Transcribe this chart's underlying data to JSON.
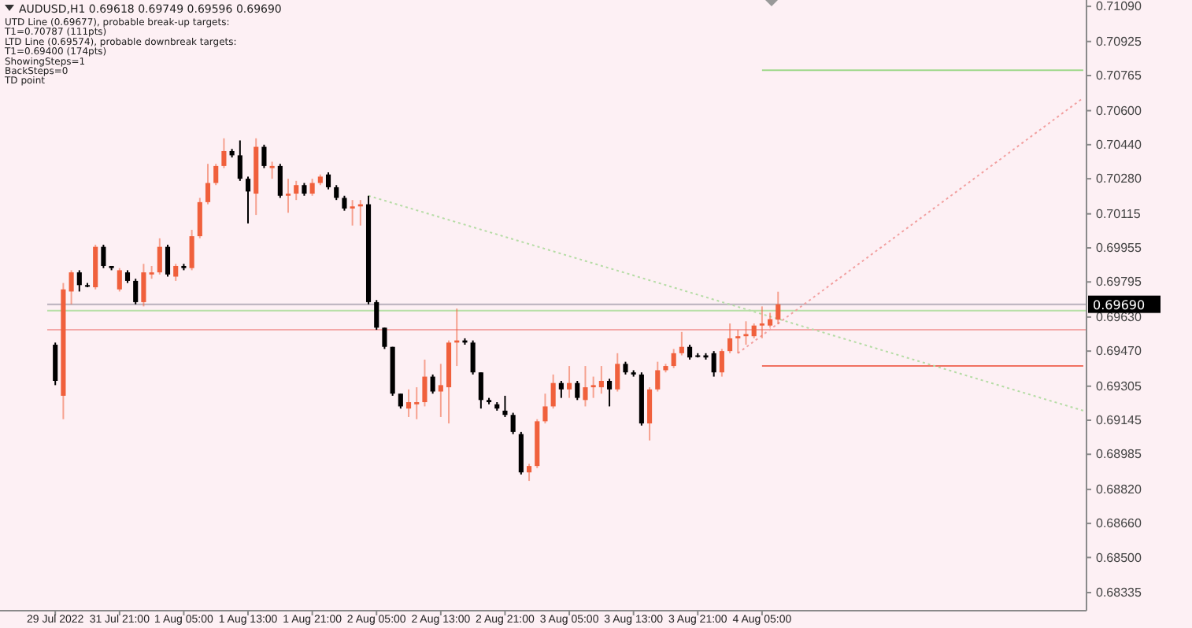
{
  "chart_data": {
    "type": "candlestick",
    "title": "AUDUSD,H1  0.69618 0.69749 0.69596 0.69690",
    "annotations": [
      "UTD Line (0.69677), probable break-up targets:",
      "T1=0.70787 (111pts)",
      "LTD Line (0.69574), probable downbreak targets:",
      "T1=0.69400 (174pts)",
      "ShowingSteps=1",
      "BackSteps=0",
      "TD point"
    ],
    "categories": [
      "29 Jul 2022",
      null,
      null,
      null,
      null,
      null,
      null,
      null,
      "31 Jul 21:00",
      null,
      null,
      null,
      null,
      null,
      null,
      null,
      "1 Aug 05:00",
      null,
      null,
      null,
      null,
      null,
      null,
      null,
      "1 Aug 13:00",
      null,
      null,
      null,
      null,
      null,
      null,
      null,
      "1 Aug 21:00",
      null,
      null,
      null,
      null,
      null,
      null,
      null,
      "2 Aug 05:00",
      null,
      null,
      null,
      null,
      null,
      null,
      null,
      "2 Aug 13:00",
      null,
      null,
      null,
      null,
      null,
      null,
      null,
      "2 Aug 21:00",
      null,
      null,
      null,
      null,
      null,
      null,
      null,
      "3 Aug 05:00",
      null,
      null,
      null,
      null,
      null,
      null,
      null,
      "3 Aug 13:00",
      null,
      null,
      null,
      null,
      null,
      null,
      null,
      "3 Aug 21:00",
      null,
      null,
      null,
      null,
      null,
      null,
      null,
      "4 Aug 05:00",
      null,
      null,
      null,
      null,
      null,
      null,
      null,
      null,
      null,
      null,
      null,
      null,
      null,
      null,
      null,
      null,
      null,
      null,
      null,
      null,
      null,
      null,
      null,
      null,
      null,
      null,
      null,
      null,
      null,
      null,
      null,
      null,
      null,
      null,
      null,
      null,
      null,
      null,
      null,
      null
    ],
    "ohlc": [
      [
        0.695,
        0.6951,
        0.6931,
        0.6933
      ],
      [
        0.6926,
        0.6979,
        0.6915,
        0.6976
      ],
      [
        0.6975,
        0.6985,
        0.6969,
        0.6984
      ],
      [
        0.6984,
        0.6985,
        0.6975,
        0.6978
      ],
      [
        0.6978,
        0.6979,
        0.6977,
        0.6978
      ],
      [
        0.6977,
        0.6997,
        0.6976,
        0.6996
      ],
      [
        0.6996,
        0.6997,
        0.6986,
        0.6987
      ],
      [
        0.6987,
        0.6987,
        0.6985,
        0.6986
      ],
      [
        0.6976,
        0.6986,
        0.6975,
        0.6985
      ],
      [
        0.6984,
        0.6985,
        0.6979,
        0.698
      ],
      [
        0.698,
        0.6981,
        0.6969,
        0.697
      ],
      [
        0.697,
        0.6988,
        0.6968,
        0.6984
      ],
      [
        0.6983,
        0.6987,
        0.6981,
        0.6984
      ],
      [
        0.6984,
        0.7,
        0.6983,
        0.6996
      ],
      [
        0.6996,
        0.6997,
        0.6982,
        0.6983
      ],
      [
        0.6982,
        0.6988,
        0.698,
        0.6987
      ],
      [
        0.6987,
        0.6988,
        0.6985,
        0.6986
      ],
      [
        0.6986,
        0.7004,
        0.6985,
        0.7001
      ],
      [
        0.7001,
        0.7019,
        0.7,
        0.7017
      ],
      [
        0.7017,
        0.7035,
        0.7016,
        0.7026
      ],
      [
        0.7026,
        0.7035,
        0.7025,
        0.7034
      ],
      [
        0.7034,
        0.7047,
        0.7033,
        0.7041
      ],
      [
        0.7041,
        0.7042,
        0.7038,
        0.7039
      ],
      [
        0.7039,
        0.7046,
        0.7027,
        0.7028
      ],
      [
        0.7028,
        0.7029,
        0.7007,
        0.7022
      ],
      [
        0.7021,
        0.7047,
        0.7011,
        0.7043
      ],
      [
        0.7043,
        0.7044,
        0.7033,
        0.7034
      ],
      [
        0.7033,
        0.7036,
        0.7028,
        0.7034
      ],
      [
        0.7034,
        0.7035,
        0.7019,
        0.702
      ],
      [
        0.702,
        0.7028,
        0.7012,
        0.7021
      ],
      [
        0.7021,
        0.7027,
        0.7018,
        0.7025
      ],
      [
        0.7025,
        0.7026,
        0.702,
        0.7021
      ],
      [
        0.7021,
        0.7028,
        0.702,
        0.7026
      ],
      [
        0.7026,
        0.703,
        0.7025,
        0.7029
      ],
      [
        0.703,
        0.7031,
        0.7023,
        0.7024
      ],
      [
        0.7024,
        0.7025,
        0.7018,
        0.7019
      ],
      [
        0.7019,
        0.702,
        0.7013,
        0.7014
      ],
      [
        0.7014,
        0.7018,
        0.7006,
        0.7015
      ],
      [
        0.7015,
        0.7018,
        0.7006,
        0.7016
      ],
      [
        0.7016,
        0.702,
        0.6969,
        0.697
      ],
      [
        0.697,
        0.6971,
        0.6957,
        0.6958
      ],
      [
        0.6958,
        0.6958,
        0.6948,
        0.6949
      ],
      [
        0.6949,
        0.6949,
        0.6926,
        0.6927
      ],
      [
        0.6927,
        0.6927,
        0.692,
        0.6921
      ],
      [
        0.692,
        0.6929,
        0.6916,
        0.6923
      ],
      [
        0.6922,
        0.693,
        0.6915,
        0.6923
      ],
      [
        0.6923,
        0.6943,
        0.6921,
        0.6935
      ],
      [
        0.6935,
        0.6936,
        0.6927,
        0.6928
      ],
      [
        0.6928,
        0.6941,
        0.6916,
        0.6931
      ],
      [
        0.693,
        0.6952,
        0.6913,
        0.6951
      ],
      [
        0.6951,
        0.6967,
        0.694,
        0.6952
      ],
      [
        0.6952,
        0.6953,
        0.695,
        0.6951
      ],
      [
        0.6951,
        0.6952,
        0.6936,
        0.6937
      ],
      [
        0.6937,
        0.6937,
        0.692,
        0.6924
      ],
      [
        0.6924,
        0.6925,
        0.6922,
        0.6923
      ],
      [
        0.6922,
        0.6923,
        0.6919,
        0.692
      ],
      [
        0.6919,
        0.6926,
        0.6916,
        0.6917
      ],
      [
        0.6917,
        0.6918,
        0.6908,
        0.6909
      ],
      [
        0.6908,
        0.6909,
        0.6889,
        0.689
      ],
      [
        0.689,
        0.6894,
        0.6886,
        0.6893
      ],
      [
        0.6893,
        0.6915,
        0.6892,
        0.6914
      ],
      [
        0.6914,
        0.6927,
        0.6913,
        0.6921
      ],
      [
        0.6921,
        0.6936,
        0.692,
        0.6932
      ],
      [
        0.6932,
        0.6933,
        0.6925,
        0.6929
      ],
      [
        0.6929,
        0.694,
        0.6925,
        0.6932
      ],
      [
        0.6932,
        0.6933,
        0.6924,
        0.6925
      ],
      [
        0.6924,
        0.694,
        0.6921,
        0.693
      ],
      [
        0.693,
        0.6935,
        0.6925,
        0.6931
      ],
      [
        0.693,
        0.694,
        0.6927,
        0.6933
      ],
      [
        0.6933,
        0.6934,
        0.6921,
        0.6929
      ],
      [
        0.6929,
        0.6946,
        0.6928,
        0.6941
      ],
      [
        0.6941,
        0.6942,
        0.6936,
        0.6937
      ],
      [
        0.6937,
        0.6938,
        0.6935,
        0.6936
      ],
      [
        0.6936,
        0.6937,
        0.6912,
        0.6913
      ],
      [
        0.6913,
        0.693,
        0.6905,
        0.6929
      ],
      [
        0.6929,
        0.6942,
        0.6928,
        0.6938
      ],
      [
        0.6938,
        0.6941,
        0.6937,
        0.694
      ],
      [
        0.694,
        0.6948,
        0.6939,
        0.6946
      ],
      [
        0.6946,
        0.6956,
        0.6945,
        0.6949
      ],
      [
        0.6949,
        0.695,
        0.6943,
        0.6944
      ],
      [
        0.6945,
        0.6946,
        0.6944,
        0.6945
      ],
      [
        0.6945,
        0.6946,
        0.6943,
        0.6944
      ],
      [
        0.6946,
        0.6947,
        0.6935,
        0.6937
      ],
      [
        0.6937,
        0.6948,
        0.6935,
        0.6947
      ],
      [
        0.6947,
        0.696,
        0.6946,
        0.6953
      ],
      [
        0.6953,
        0.6957,
        0.6946,
        0.6954
      ],
      [
        0.6954,
        0.6961,
        0.695,
        0.6955
      ],
      [
        0.6954,
        0.696,
        0.6953,
        0.6959
      ],
      [
        0.6959,
        0.6968,
        0.6953,
        0.696
      ],
      [
        0.6959,
        0.6965,
        0.6958,
        0.6962
      ],
      [
        0.69618,
        0.69749,
        0.69596,
        0.6969
      ],
      null,
      null,
      null,
      null,
      null,
      null,
      null,
      null,
      null,
      null,
      null,
      null,
      null,
      null,
      null,
      null,
      null,
      null,
      null,
      null,
      null,
      null,
      null,
      null,
      null,
      null,
      null,
      null,
      null,
      null,
      null,
      null,
      null,
      null,
      null,
      null,
      null,
      null
    ],
    "colors": [
      "#000000",
      "#f0603c",
      "#f0603c",
      "#000000",
      "#000000",
      "#f0603c",
      "#000000",
      "#000000",
      "#f0603c",
      "#000000",
      "#000000",
      "#f0603c",
      "#f0603c",
      "#f0603c",
      "#000000",
      "#f0603c",
      "#000000",
      "#f0603c",
      "#f0603c",
      "#f0603c",
      "#f0603c",
      "#f0603c",
      "#000000",
      "#000000",
      "#000000",
      "#f0603c",
      "#000000",
      "#f0603c",
      "#000000",
      "#f0603c",
      "#f0603c",
      "#000000",
      "#f0603c",
      "#f0603c",
      "#000000",
      "#000000",
      "#000000",
      "#f0603c",
      "#f0603c",
      "#000000",
      "#000000",
      "#000000",
      "#000000",
      "#000000",
      "#f0603c",
      "#f0603c",
      "#f0603c",
      "#000000",
      "#f0603c",
      "#f0603c",
      "#f0603c",
      "#000000",
      "#000000",
      "#000000",
      "#000000",
      "#000000",
      "#000000",
      "#000000",
      "#000000",
      "#f0603c",
      "#f0603c",
      "#f0603c",
      "#f0603c",
      "#000000",
      "#f0603c",
      "#000000",
      "#f0603c",
      "#f0603c",
      "#f0603c",
      "#000000",
      "#f0603c",
      "#000000",
      "#000000",
      "#000000",
      "#f0603c",
      "#f0603c",
      "#f0603c",
      "#f0603c",
      "#f0603c",
      "#000000",
      "#000000",
      "#000000",
      "#000000",
      "#f0603c",
      "#f0603c",
      "#f0603c",
      "#f0603c",
      "#f0603c",
      "#f0603c",
      "#f0603c",
      "#f0603c",
      null,
      null,
      null,
      null,
      null,
      null,
      null,
      null,
      null,
      null,
      null,
      null,
      null,
      null,
      null,
      null,
      null,
      null,
      null,
      null,
      null,
      null,
      null,
      null,
      null,
      null,
      null,
      null,
      null,
      null,
      null,
      null,
      null,
      null,
      null,
      null,
      null,
      null
    ],
    "series": [
      {
        "type": "line",
        "color": "#9ed88a",
        "line_style": "solid",
        "values": [
          null,
          null,
          null,
          null,
          null,
          null,
          null,
          null,
          null,
          null,
          null,
          null,
          null,
          null,
          null,
          null,
          null,
          null,
          null,
          null,
          null,
          null,
          null,
          null,
          null,
          null,
          null,
          null,
          null,
          null,
          null,
          null,
          null,
          null,
          null,
          null,
          null,
          null,
          null,
          null,
          null,
          null,
          null,
          null,
          null,
          null,
          null,
          null,
          null,
          null,
          null,
          null,
          null,
          null,
          null,
          null,
          null,
          null,
          null,
          null,
          null,
          null,
          null,
          null,
          null,
          null,
          null,
          null,
          null,
          null,
          null,
          null,
          null,
          null,
          null,
          null,
          null,
          null,
          null,
          null,
          null,
          null,
          null,
          null,
          null,
          null,
          null,
          null,
          0.7079,
          0.7079,
          0.7079,
          0.7079,
          0.7079,
          0.7079,
          0.7079,
          0.7079,
          0.7079,
          0.7079,
          0.7079,
          0.7079,
          0.7079,
          0.7079,
          0.7079,
          0.7079,
          0.7079,
          0.7079,
          0.7079,
          0.7079,
          0.7079,
          0.7079,
          0.7079,
          0.7079,
          0.7079,
          0.7079,
          0.7079,
          0.7079,
          0.7079,
          0.7079,
          0.7079,
          0.7079,
          0.7079,
          0.7079,
          0.7079,
          0.7079,
          0.7079,
          0.7079,
          0.7079,
          0.7079,
          0.7079
        ]
      },
      {
        "type": "line",
        "color": "#f07060",
        "line_style": "solid",
        "values": [
          null,
          null,
          null,
          null,
          null,
          null,
          null,
          null,
          null,
          null,
          null,
          null,
          null,
          null,
          null,
          null,
          null,
          null,
          null,
          null,
          null,
          null,
          null,
          null,
          null,
          null,
          null,
          null,
          null,
          null,
          null,
          null,
          null,
          null,
          null,
          null,
          null,
          null,
          null,
          null,
          null,
          null,
          null,
          null,
          null,
          null,
          null,
          null,
          null,
          null,
          null,
          null,
          null,
          null,
          null,
          null,
          null,
          null,
          null,
          null,
          null,
          null,
          null,
          null,
          null,
          null,
          null,
          null,
          null,
          null,
          null,
          null,
          null,
          null,
          null,
          null,
          null,
          null,
          null,
          null,
          null,
          null,
          null,
          null,
          null,
          null,
          null,
          null,
          0.694,
          0.694,
          0.694,
          0.694,
          0.694,
          0.694,
          0.694,
          0.694,
          0.694,
          0.694,
          0.694,
          0.694,
          0.694,
          0.694,
          0.694,
          0.694,
          0.694,
          0.694,
          0.694,
          0.694,
          0.694,
          0.694,
          0.694,
          0.694,
          0.694,
          0.694,
          0.694,
          0.694,
          0.694,
          0.694,
          0.694,
          0.694,
          0.694,
          0.694,
          0.694,
          0.694,
          0.694,
          0.694,
          0.694,
          0.694,
          0.694
        ]
      },
      {
        "type": "line",
        "color": "#b5dca5",
        "line_style": "dotted",
        "values": [
          null,
          null,
          null,
          null,
          null,
          null,
          null,
          null,
          null,
          null,
          null,
          null,
          null,
          null,
          null,
          null,
          null,
          null,
          null,
          null,
          null,
          null,
          null,
          null,
          null,
          null,
          null,
          null,
          null,
          null,
          null,
          null,
          null,
          null,
          null,
          null,
          null,
          null,
          null,
          0.702,
          null,
          null,
          null,
          null,
          null,
          null,
          null,
          null,
          null,
          null,
          null,
          null,
          null,
          null,
          null,
          null,
          null,
          null,
          null,
          null,
          null,
          null,
          null,
          null,
          null,
          null,
          null,
          null,
          null,
          null,
          null,
          null,
          null,
          null,
          null,
          null,
          null,
          null,
          null,
          null,
          null,
          null,
          null,
          null,
          null,
          null,
          null,
          null,
          null,
          null,
          null,
          null,
          null,
          null,
          null,
          null,
          null,
          null,
          null,
          null,
          null,
          null,
          null,
          null,
          null,
          null,
          null,
          null,
          null,
          null,
          null,
          null,
          null,
          null,
          null,
          null,
          null,
          null,
          null,
          null,
          null,
          null,
          null,
          null,
          null,
          null,
          null,
          null,
          0.6919
        ]
      },
      {
        "type": "line",
        "color": "#f2a0a0",
        "line_style": "dotted",
        "values": [
          null,
          null,
          null,
          null,
          null,
          null,
          null,
          null,
          null,
          null,
          null,
          null,
          null,
          null,
          null,
          null,
          null,
          null,
          null,
          null,
          null,
          null,
          null,
          null,
          null,
          null,
          null,
          null,
          null,
          null,
          null,
          null,
          null,
          null,
          null,
          null,
          null,
          null,
          null,
          null,
          null,
          null,
          null,
          null,
          null,
          null,
          null,
          null,
          null,
          null,
          null,
          null,
          null,
          null,
          null,
          null,
          null,
          null,
          null,
          null,
          null,
          null,
          null,
          null,
          null,
          null,
          null,
          null,
          null,
          null,
          null,
          null,
          null,
          null,
          null,
          null,
          null,
          null,
          null,
          null,
          null,
          null,
          null,
          null,
          null,
          0.6946,
          null,
          null,
          null,
          null,
          null,
          null,
          null,
          null,
          null,
          null,
          null,
          null,
          null,
          null,
          null,
          null,
          null,
          null,
          null,
          null,
          null,
          null,
          null,
          null,
          null,
          null,
          null,
          null,
          null,
          null,
          null,
          null,
          null,
          null,
          null,
          null,
          null,
          null,
          null,
          null,
          null,
          null,
          0.7066
        ]
      }
    ],
    "ref_lines": [
      {
        "axis": "y",
        "value": 0.6969,
        "label": "0.69690",
        "color": "#b8b0bc"
      },
      {
        "axis": "y",
        "value": 0.6966,
        "color": "#b8e0a8"
      },
      {
        "axis": "y",
        "value": 0.6957,
        "color": "#f4a8a8"
      }
    ],
    "ylim": [
      0.6825,
      0.7112
    ],
    "yticks": [
      {
        "value": 0.7109,
        "label": "0.71090"
      },
      {
        "value": 0.70925,
        "label": "0.70925"
      },
      {
        "value": 0.70765,
        "label": "0.70765"
      },
      {
        "value": 0.706,
        "label": "0.70600"
      },
      {
        "value": 0.7044,
        "label": "0.70440"
      },
      {
        "value": 0.7028,
        "label": "0.70280"
      },
      {
        "value": 0.70115,
        "label": "0.70115"
      },
      {
        "value": 0.69955,
        "label": "0.69955"
      },
      {
        "value": 0.69795,
        "label": "0.69795"
      },
      {
        "value": 0.6963,
        "label": "0.69630"
      },
      {
        "value": 0.6947,
        "label": "0.69470"
      },
      {
        "value": 0.69305,
        "label": "0.69305"
      },
      {
        "value": 0.69145,
        "label": "0.69145"
      },
      {
        "value": 0.68985,
        "label": "0.68985"
      },
      {
        "value": 0.6882,
        "label": "0.68820"
      },
      {
        "value": 0.6866,
        "label": "0.68660"
      },
      {
        "value": 0.685,
        "label": "0.68500"
      },
      {
        "value": 0.68335,
        "label": "0.68335"
      }
    ],
    "grid": false
  }
}
